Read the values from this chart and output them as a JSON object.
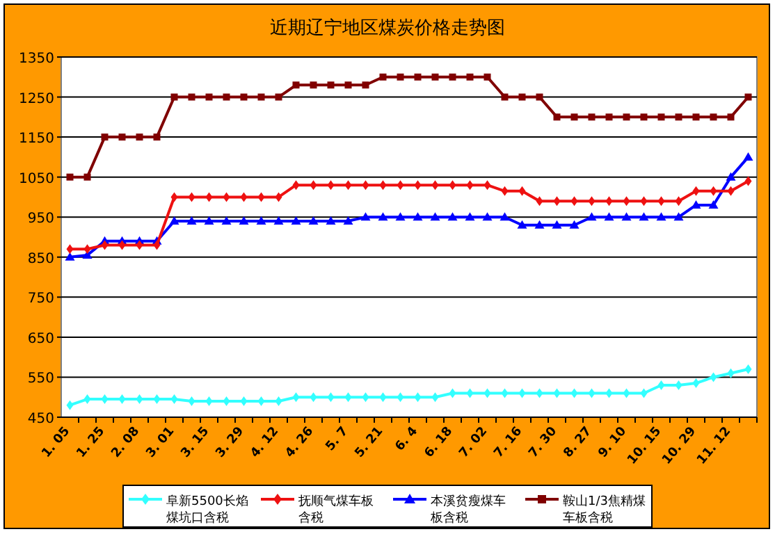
{
  "chart_data": {
    "type": "line",
    "title": "近期辽宁地区煤炭价格走势图",
    "categories": [
      "1. 05",
      null,
      "1. 25",
      null,
      "2. 08",
      null,
      "3. 01",
      null,
      "3. 15",
      null,
      "3. 29",
      null,
      "4. 12",
      null,
      "4. 26",
      null,
      "5. 7",
      null,
      "5. 21",
      null,
      "6. 4",
      null,
      "6. 18",
      null,
      "7. 02",
      null,
      "7. 16",
      null,
      "7. 30",
      null,
      "8. 27",
      null,
      "9. 10",
      null,
      "10. 15",
      null,
      "10. 29",
      null,
      "11. 12",
      null
    ],
    "series": [
      {
        "name": "阜新5500长焰煤坑口含税",
        "color": "#33ffff",
        "marker": "diamond",
        "values": [
          480,
          495,
          495,
          495,
          495,
          495,
          495,
          490,
          490,
          490,
          490,
          490,
          490,
          500,
          500,
          500,
          500,
          500,
          500,
          500,
          500,
          500,
          510,
          510,
          510,
          510,
          510,
          510,
          510,
          510,
          510,
          510,
          510,
          510,
          530,
          530,
          535,
          550,
          560,
          570
        ]
      },
      {
        "name": "抚顺气煤车板含税",
        "color": "#ee1111",
        "marker": "diamond",
        "values": [
          870,
          870,
          880,
          880,
          880,
          880,
          1000,
          1000,
          1000,
          1000,
          1000,
          1000,
          1000,
          1030,
          1030,
          1030,
          1030,
          1030,
          1030,
          1030,
          1030,
          1030,
          1030,
          1030,
          1030,
          1015,
          1015,
          990,
          990,
          990,
          990,
          990,
          990,
          990,
          990,
          990,
          1015,
          1015,
          1015,
          1040
        ]
      },
      {
        "name": "本溪贫瘦煤车板含税",
        "color": "#0000ff",
        "marker": "triangle",
        "values": [
          850,
          855,
          890,
          890,
          890,
          890,
          940,
          940,
          940,
          940,
          940,
          940,
          940,
          940,
          940,
          940,
          940,
          950,
          950,
          950,
          950,
          950,
          950,
          950,
          950,
          950,
          930,
          930,
          930,
          930,
          950,
          950,
          950,
          950,
          950,
          950,
          980,
          980,
          1050,
          1100
        ]
      },
      {
        "name": "鞍山1/3焦精煤车板含税",
        "color": "#800000",
        "marker": "square",
        "values": [
          1050,
          1050,
          1150,
          1150,
          1150,
          1150,
          1250,
          1250,
          1250,
          1250,
          1250,
          1250,
          1250,
          1280,
          1280,
          1280,
          1280,
          1280,
          1300,
          1300,
          1300,
          1300,
          1300,
          1300,
          1300,
          1250,
          1250,
          1250,
          1200,
          1200,
          1200,
          1200,
          1200,
          1200,
          1200,
          1200,
          1200,
          1200,
          1200,
          1250
        ]
      }
    ],
    "ylim": [
      450,
      1350
    ],
    "yticks": [
      450,
      550,
      650,
      750,
      850,
      950,
      1050,
      1150,
      1250,
      1350
    ],
    "grid": "y",
    "legend": "bottom"
  }
}
